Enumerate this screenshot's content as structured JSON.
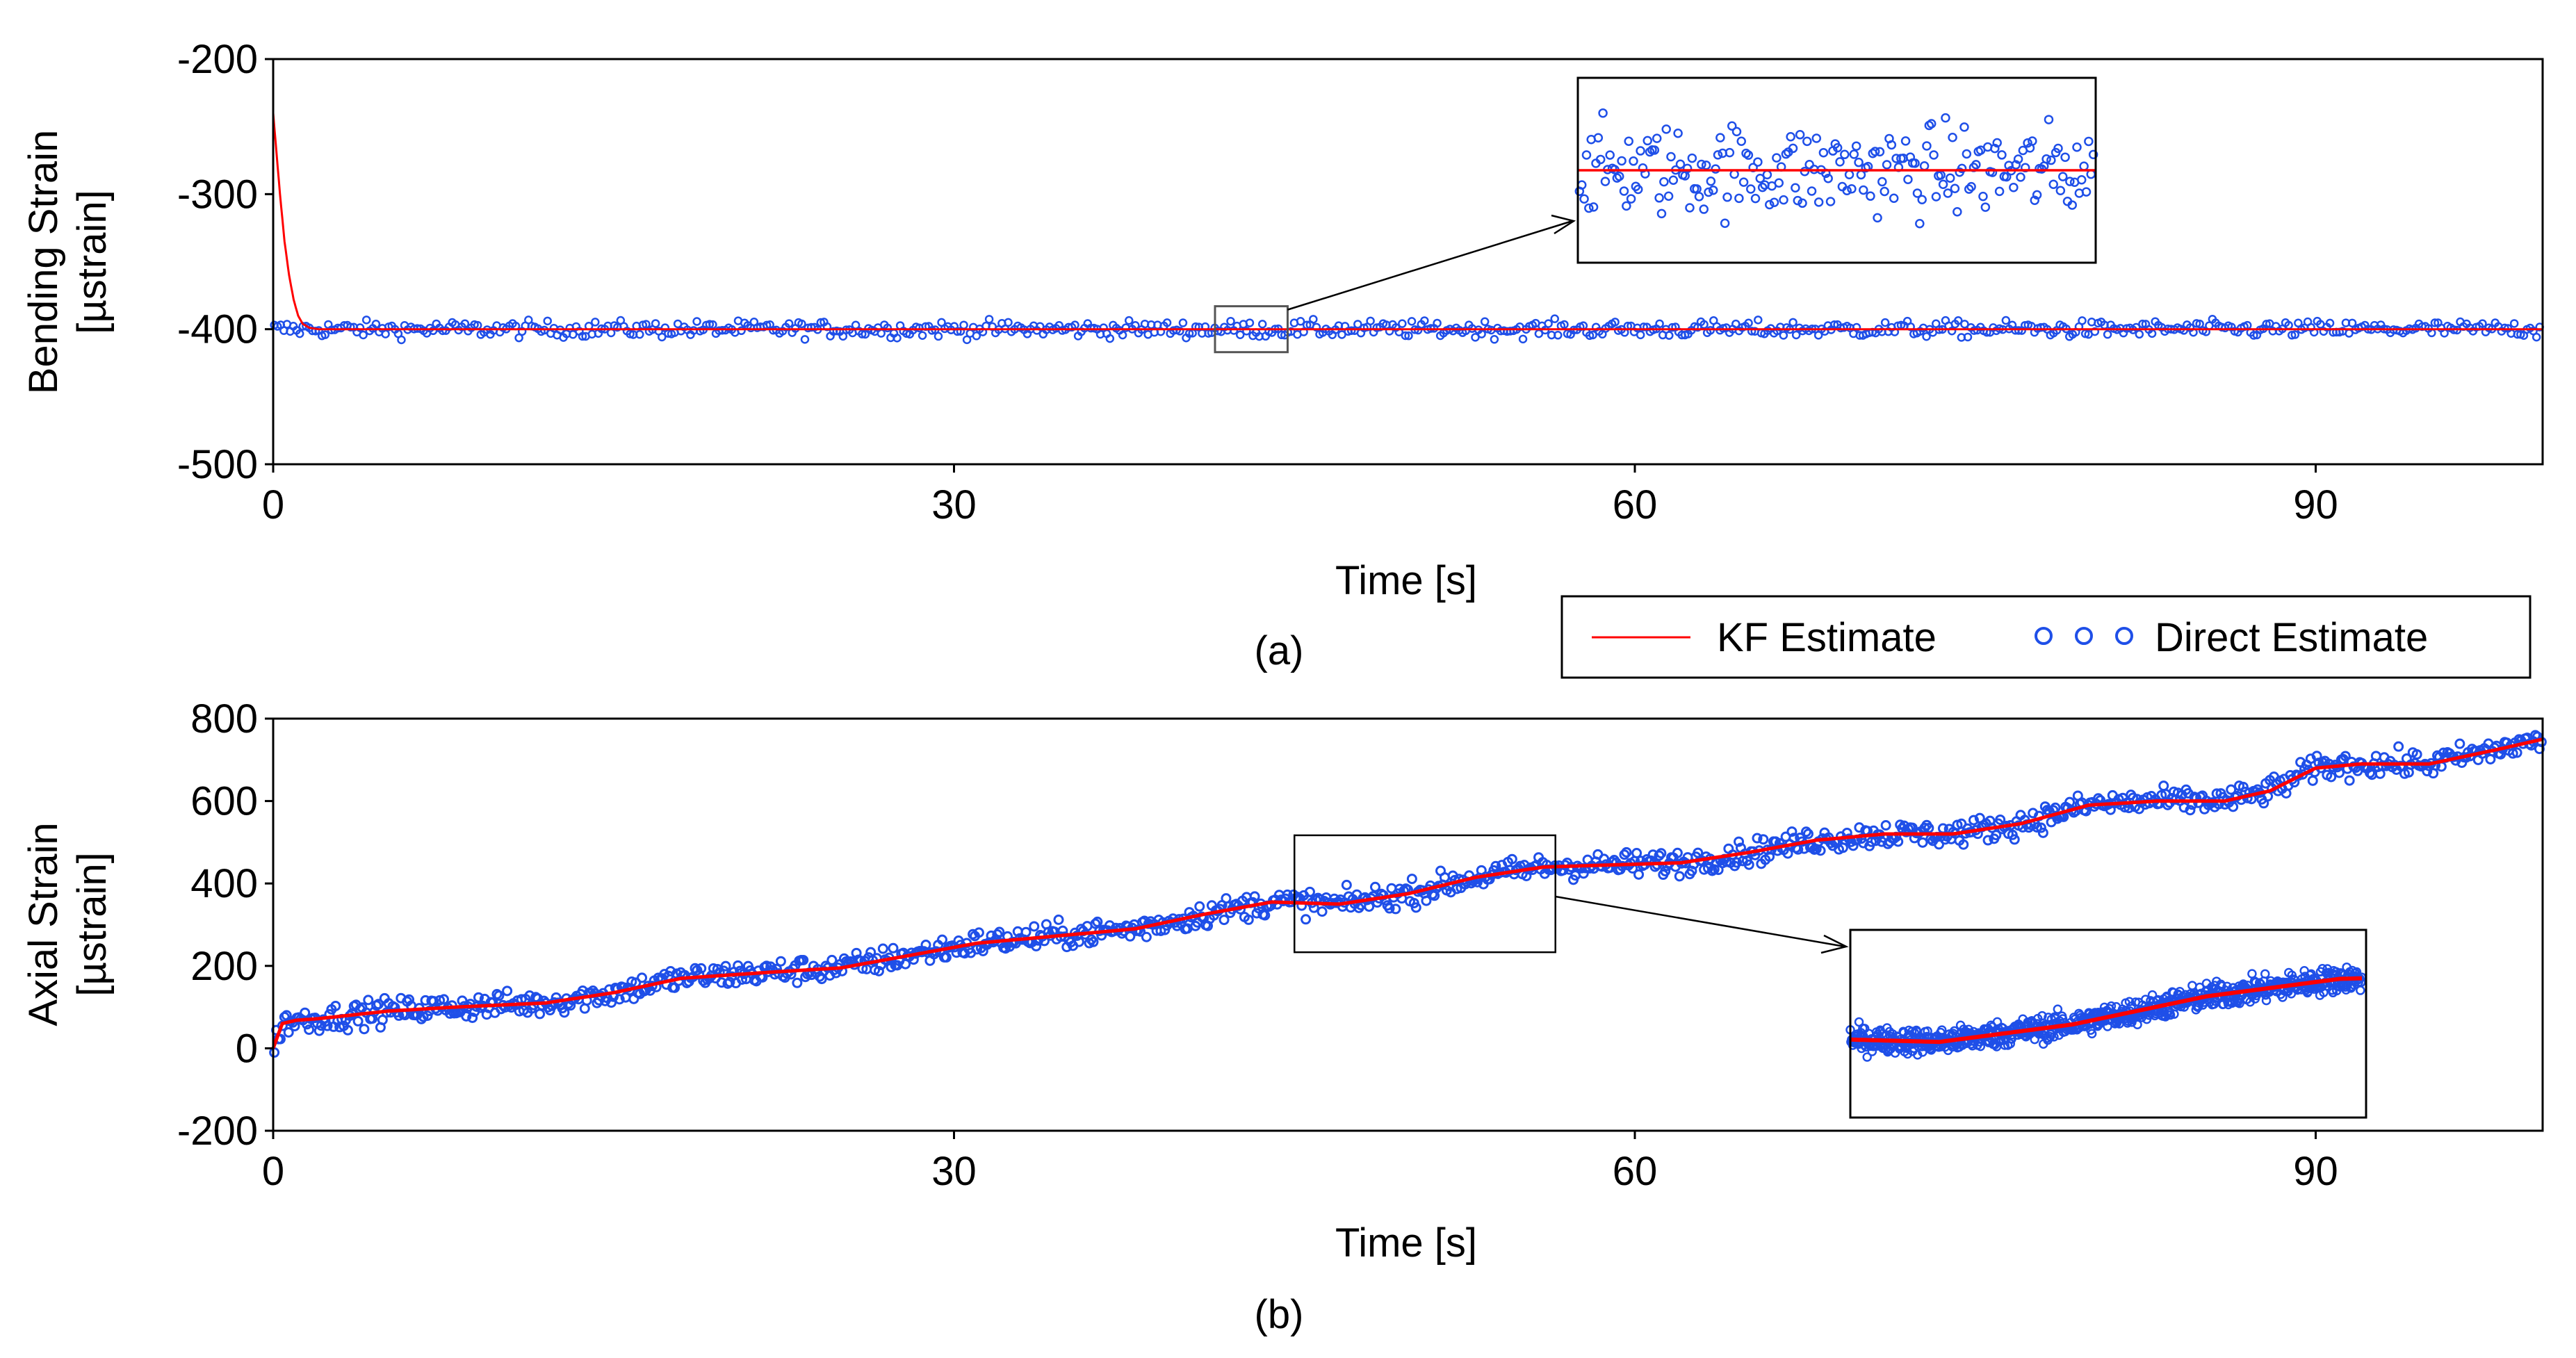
{
  "colors": {
    "kf_line": "#ff0000",
    "direct_marker": "#1f4fe8",
    "axis": "#000000",
    "frame": "#000000",
    "background": "#ffffff"
  },
  "legend": {
    "kf_label": "KF Estimate",
    "direct_label": "Direct Estimate",
    "direct_symbol": "o o o"
  },
  "chart_data": [
    {
      "type": "scatter",
      "panel_label": "(a)",
      "title": "",
      "xlabel": "Time [s]",
      "ylabel_line1": "Bending Strain",
      "ylabel_line2": "[µstrain]",
      "xlim": [
        0,
        100
      ],
      "ylim": [
        -500,
        -200
      ],
      "xticks": [
        0,
        30,
        60,
        90
      ],
      "xtick_labels": [
        "0",
        "30",
        "60",
        "90"
      ],
      "yticks": [
        -200,
        -300,
        -400,
        -500
      ],
      "ytick_labels": [
        "-200",
        "-300",
        "-400",
        "-500"
      ],
      "grid": false,
      "legend_position": "below-right",
      "series": [
        {
          "name": "KF Estimate",
          "kind": "line",
          "description": "starts near -240 at t=0, decays to -400 by about t=1.3 s, then flat",
          "x": [
            0,
            0.15,
            0.3,
            0.5,
            0.7,
            0.9,
            1.1,
            1.3,
            1.6,
            2,
            100
          ],
          "values": [
            -240,
            -270,
            -300,
            -335,
            -360,
            -378,
            -390,
            -396,
            -399,
            -400,
            -400
          ]
        },
        {
          "name": "Direct Estimate",
          "kind": "scatter",
          "description": "dense noisy samples around -400 with spread of about +/-5",
          "mean": -400,
          "noise": 5,
          "x_range": [
            0,
            100
          ]
        }
      ],
      "inset": {
        "zoom_x_range": [
          41.5,
          44.7
        ],
        "zoom_y_range": [
          -417,
          -383
        ],
        "kf_level": -400,
        "direct_mean": -400
      }
    },
    {
      "type": "scatter",
      "panel_label": "(b)",
      "title": "",
      "xlabel": "Time [s]",
      "ylabel_line1": "Axial Strain",
      "ylabel_line2": "[µstrain]",
      "xlim": [
        0,
        100
      ],
      "ylim": [
        -200,
        800
      ],
      "xticks": [
        0,
        30,
        60,
        90
      ],
      "xtick_labels": [
        "0",
        "30",
        "60",
        "90"
      ],
      "yticks": [
        800,
        600,
        400,
        200,
        0,
        -200
      ],
      "ytick_labels": [
        "800",
        "600",
        "400",
        "200",
        "0",
        "-200"
      ],
      "grid": false,
      "series": [
        {
          "name": "KF Estimate",
          "kind": "line",
          "x": [
            0,
            0.4,
            1,
            2,
            5,
            8,
            12,
            15,
            18,
            22,
            25,
            28,
            31,
            34,
            38,
            41,
            44,
            47,
            50,
            53,
            56,
            59,
            62,
            65,
            68,
            71,
            74,
            77,
            80,
            83,
            86,
            88,
            90,
            92,
            95,
            98,
            100
          ],
          "values": [
            0,
            60,
            68,
            72,
            90,
            100,
            110,
            135,
            170,
            185,
            195,
            225,
            255,
            270,
            290,
            325,
            355,
            350,
            375,
            415,
            440,
            445,
            450,
            475,
            505,
            520,
            520,
            545,
            590,
            600,
            600,
            625,
            680,
            690,
            690,
            725,
            750
          ]
        },
        {
          "name": "Direct Estimate",
          "kind": "scatter",
          "description": "dense noisy samples following the KF curve with spread of about +/-15",
          "noise": 15,
          "x_range": [
            0,
            100
          ]
        }
      ],
      "inset": {
        "zoom_x_range": [
          45,
          56.5
        ],
        "zoom_y_range": [
          250,
          500
        ]
      }
    }
  ]
}
